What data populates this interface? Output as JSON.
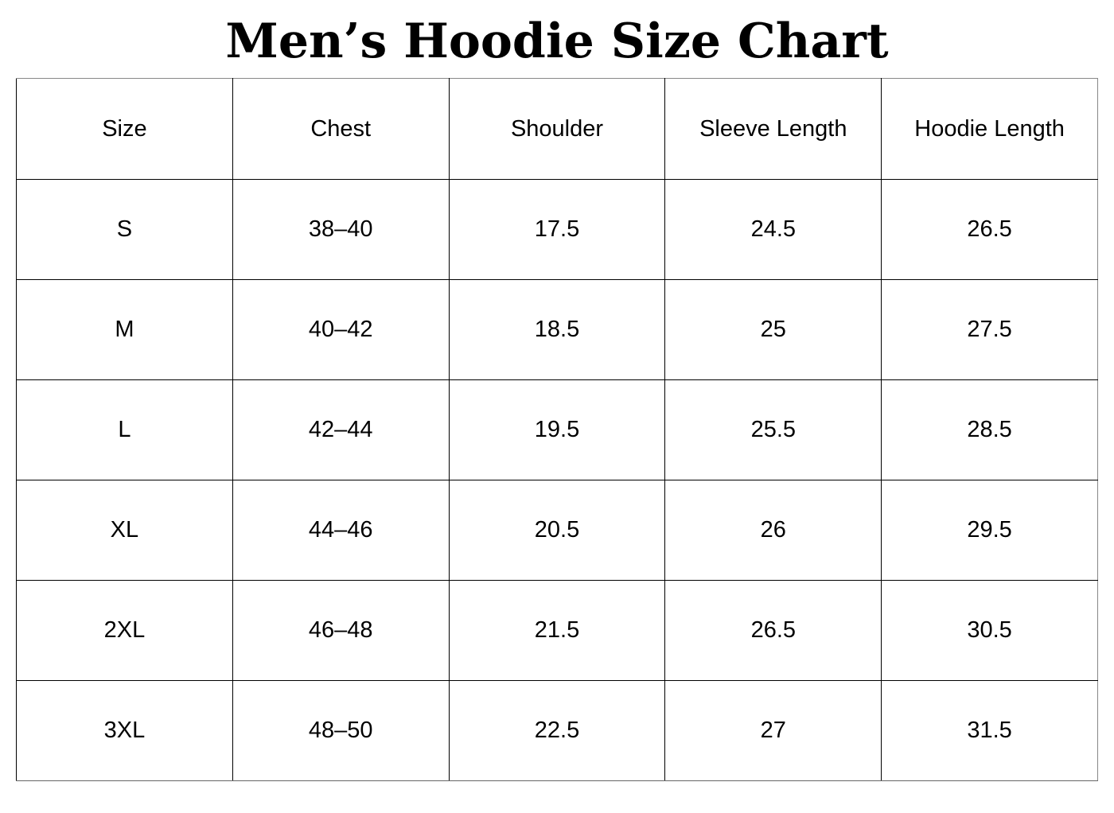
{
  "title": "Men’s Hoodie Size Chart",
  "table": {
    "headers": [
      "Size",
      "Chest",
      "Shoulder",
      "Sleeve Length",
      "Hoodie Length"
    ],
    "rows": [
      [
        "S",
        "38–40",
        "17.5",
        "24.5",
        "26.5"
      ],
      [
        "M",
        "40–42",
        "18.5",
        "25",
        "27.5"
      ],
      [
        "L",
        "42–44",
        "19.5",
        "25.5",
        "28.5"
      ],
      [
        "XL",
        "44–46",
        "20.5",
        "26",
        "29.5"
      ],
      [
        "2XL",
        "46–48",
        "21.5",
        "26.5",
        "30.5"
      ],
      [
        "3XL",
        "48–50",
        "22.5",
        "27",
        "31.5"
      ]
    ]
  },
  "colors": {
    "text": "#000000",
    "background": "#ffffff",
    "grid_border": "#000000",
    "outer_border": "#888888"
  }
}
